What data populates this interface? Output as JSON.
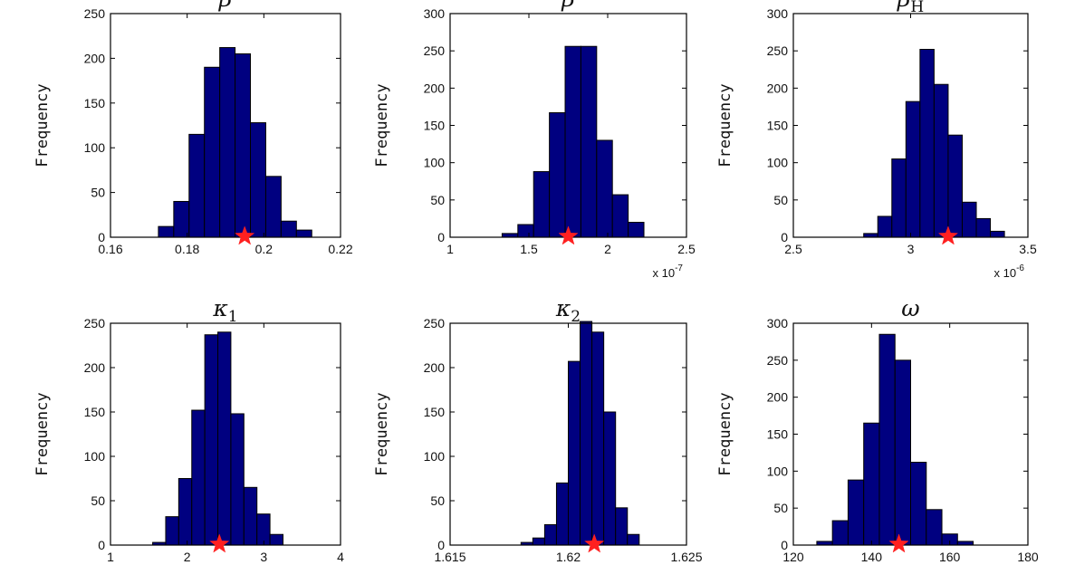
{
  "chart_data": [
    {
      "type": "bar",
      "title": "β",
      "title_sub": "",
      "ylabel": "Frequency",
      "xlim": [
        0.16,
        0.22
      ],
      "ylim": [
        0,
        250
      ],
      "xticks": [
        "0.16",
        "0.18",
        "0.2",
        "0.22"
      ],
      "yticks": [
        "0",
        "50",
        "100",
        "150",
        "200",
        "250"
      ],
      "bin_edges": [
        0.1725,
        0.1765,
        0.1805,
        0.1845,
        0.1885,
        0.1925,
        0.1965,
        0.2005,
        0.2045,
        0.2085,
        0.2125,
        0.2165
      ],
      "values": [
        12,
        40,
        115,
        190,
        212,
        205,
        128,
        68,
        18,
        8,
        0
      ],
      "marker_x": 0.195,
      "x_multiplier": "",
      "x_multiplier_exp": ""
    },
    {
      "type": "bar",
      "title": "β",
      "title_sub": "",
      "ylabel": "Frequency",
      "xlim": [
        1,
        2.5
      ],
      "ylim": [
        0,
        300
      ],
      "xticks": [
        "1",
        "1.5",
        "2",
        "2.5"
      ],
      "yticks": [
        "0",
        "50",
        "100",
        "150",
        "200",
        "250",
        "300"
      ],
      "bin_edges": [
        1.33,
        1.43,
        1.53,
        1.63,
        1.73,
        1.83,
        1.93,
        2.03,
        2.13,
        2.23
      ],
      "values": [
        5,
        17,
        88,
        167,
        256,
        256,
        130,
        57,
        20,
        5
      ],
      "marker_x": 1.75,
      "x_multiplier": "x 10",
      "x_multiplier_exp": "-7"
    },
    {
      "type": "bar",
      "title": "β",
      "title_sub": "H",
      "ylabel": "Frequency",
      "xlim": [
        2.5,
        3.5
      ],
      "ylim": [
        0,
        300
      ],
      "xticks": [
        "2.5",
        "3",
        "3.5"
      ],
      "yticks": [
        "0",
        "50",
        "100",
        "150",
        "200",
        "250",
        "300"
      ],
      "bin_edges": [
        2.8,
        2.86,
        2.92,
        2.98,
        3.04,
        3.1,
        3.16,
        3.22,
        3.28,
        3.34,
        3.4
      ],
      "values": [
        5,
        28,
        105,
        182,
        252,
        205,
        137,
        47,
        25,
        8
      ],
      "marker_x": 3.16,
      "x_multiplier": "x 10",
      "x_multiplier_exp": "-6"
    },
    {
      "type": "bar",
      "title": "κ",
      "title_sub": "1",
      "ylabel": "Frequency",
      "xlim": [
        1,
        4
      ],
      "ylim": [
        0,
        250
      ],
      "xticks": [
        "1",
        "2",
        "3",
        "4"
      ],
      "yticks": [
        "0",
        "50",
        "100",
        "150",
        "200",
        "250"
      ],
      "bin_edges": [
        1.55,
        1.72,
        1.89,
        2.06,
        2.23,
        2.4,
        2.57,
        2.74,
        2.91,
        3.08,
        3.25
      ],
      "values": [
        3,
        32,
        75,
        152,
        237,
        240,
        148,
        65,
        35,
        12
      ],
      "marker_x": 2.42,
      "x_multiplier": "",
      "x_multiplier_exp": ""
    },
    {
      "type": "bar",
      "title": "κ",
      "title_sub": "2",
      "ylabel": "Frequency",
      "xlim": [
        1.615,
        1.625
      ],
      "ylim": [
        0,
        250
      ],
      "xticks": [
        "1.615",
        "1.62",
        "1.625"
      ],
      "yticks": [
        "0",
        "50",
        "100",
        "150",
        "200",
        "250"
      ],
      "bin_edges": [
        1.6165,
        1.617,
        1.6175,
        1.618,
        1.6185,
        1.619,
        1.6195,
        1.62,
        1.6205,
        1.621,
        1.6215,
        1.622,
        1.6225,
        1.623,
        1.6235,
        1.624,
        1.6245
      ],
      "values": [
        0,
        0,
        0,
        3,
        8,
        23,
        70,
        207,
        252,
        240,
        150,
        42,
        12,
        0,
        0,
        0
      ],
      "marker_x": 1.6211,
      "x_multiplier": "",
      "x_multiplier_exp": ""
    },
    {
      "type": "bar",
      "title": "ω",
      "title_sub": "",
      "ylabel": "Frequency",
      "xlim": [
        120,
        180
      ],
      "ylim": [
        0,
        300
      ],
      "xticks": [
        "120",
        "140",
        "160",
        "180"
      ],
      "yticks": [
        "0",
        "50",
        "100",
        "150",
        "200",
        "250",
        "300"
      ],
      "bin_edges": [
        126,
        130,
        134,
        138,
        142,
        146,
        150,
        154,
        158,
        162,
        166,
        170
      ],
      "values": [
        5,
        33,
        88,
        165,
        285,
        250,
        112,
        48,
        15,
        5,
        0
      ],
      "marker_x": 147,
      "x_multiplier": "",
      "x_multiplier_exp": ""
    }
  ],
  "colors": {
    "bar_fill": "#000080",
    "bar_edge": "#000000",
    "marker": "#ff2020",
    "axis": "#000000"
  }
}
